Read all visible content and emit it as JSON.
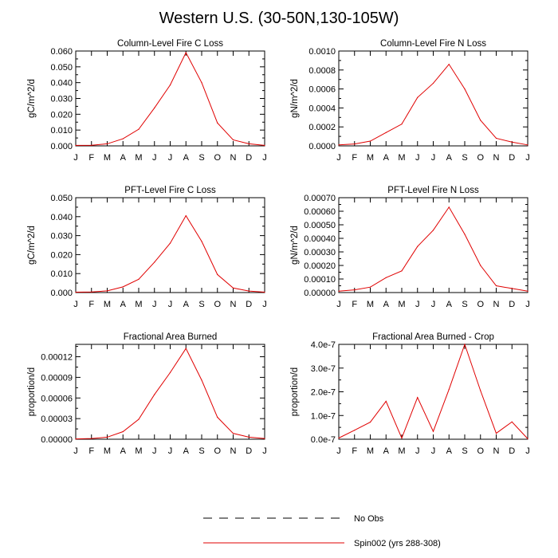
{
  "figure": {
    "title": "Western U.S. (30-50N,130-105W)",
    "series_color": "#e00000"
  },
  "legend": {
    "placement": "bottom-center",
    "entries": [
      {
        "label": "No Obs",
        "style": "dashed",
        "color": "#000000"
      },
      {
        "label": "Spin002 (yrs 288-308)",
        "style": "solid",
        "color": "#e00000"
      }
    ]
  },
  "chart_data": [
    {
      "type": "line",
      "title": "Column-Level Fire C Loss",
      "ylabel": "gC/m^2/d",
      "xlabel": "",
      "categories": [
        "J",
        "F",
        "M",
        "A",
        "M",
        "J",
        "J",
        "A",
        "S",
        "O",
        "N",
        "D",
        "J"
      ],
      "ylim": [
        0,
        0.06
      ],
      "yticks": [
        0,
        0.01,
        0.02,
        0.03,
        0.04,
        0.05,
        0.06
      ],
      "ytick_labels": [
        "0.000",
        "0.010",
        "0.020",
        "0.030",
        "0.040",
        "0.050",
        "0.060"
      ],
      "series": [
        {
          "name": "Spin002 (yrs 288-308)",
          "values": [
            0.0003,
            0.0004,
            0.0013,
            0.0045,
            0.0105,
            0.024,
            0.0385,
            0.059,
            0.04,
            0.0145,
            0.0038,
            0.0013,
            0.0003
          ]
        }
      ]
    },
    {
      "type": "line",
      "title": "Column-Level Fire N Loss",
      "ylabel": "gN/m^2/d",
      "xlabel": "",
      "categories": [
        "J",
        "F",
        "M",
        "A",
        "M",
        "J",
        "J",
        "A",
        "S",
        "O",
        "N",
        "D",
        "J"
      ],
      "ylim": [
        0,
        0.001
      ],
      "yticks": [
        0,
        0.0002,
        0.0004,
        0.0006,
        0.0008,
        0.001
      ],
      "ytick_labels": [
        "0.0000",
        "0.0002",
        "0.0004",
        "0.0006",
        "0.0008",
        "0.0010"
      ],
      "series": [
        {
          "name": "Spin002 (yrs 288-308)",
          "values": [
            1e-05,
            2e-05,
            5e-05,
            0.00014,
            0.00023,
            0.00051,
            0.00066,
            0.00086,
            0.0006,
            0.00027,
            8e-05,
            4e-05,
            1e-05
          ]
        }
      ]
    },
    {
      "type": "line",
      "title": "PFT-Level Fire C Loss",
      "ylabel": "gC/m^2/d",
      "xlabel": "",
      "categories": [
        "J",
        "F",
        "M",
        "A",
        "M",
        "J",
        "J",
        "A",
        "S",
        "O",
        "N",
        "D",
        "J"
      ],
      "ylim": [
        0,
        0.05
      ],
      "yticks": [
        0,
        0.01,
        0.02,
        0.03,
        0.04,
        0.05
      ],
      "ytick_labels": [
        "0.000",
        "0.010",
        "0.020",
        "0.030",
        "0.040",
        "0.050"
      ],
      "series": [
        {
          "name": "Spin002 (yrs 288-308)",
          "values": [
            0.0002,
            0.0003,
            0.0009,
            0.003,
            0.007,
            0.016,
            0.026,
            0.0405,
            0.027,
            0.0095,
            0.0024,
            0.0008,
            0.0002
          ]
        }
      ]
    },
    {
      "type": "line",
      "title": "PFT-Level Fire N Loss",
      "ylabel": "gN/m^2/d",
      "xlabel": "",
      "categories": [
        "J",
        "F",
        "M",
        "A",
        "M",
        "J",
        "J",
        "A",
        "S",
        "O",
        "N",
        "D",
        "J"
      ],
      "ylim": [
        0,
        0.0007
      ],
      "yticks": [
        0,
        0.0001,
        0.0002,
        0.0003,
        0.0004,
        0.0005,
        0.0006,
        0.0007
      ],
      "ytick_labels": [
        "0.00000",
        "0.00010",
        "0.00020",
        "0.00030",
        "0.00040",
        "0.00050",
        "0.00060",
        "0.00070"
      ],
      "series": [
        {
          "name": "Spin002 (yrs 288-308)",
          "values": [
            1e-05,
            2e-05,
            4e-05,
            0.00011,
            0.00016,
            0.00034,
            0.00046,
            0.00063,
            0.00043,
            0.0002,
            5e-05,
            3e-05,
            1e-05
          ]
        }
      ]
    },
    {
      "type": "line",
      "title": "Fractional Area Burned",
      "ylabel": "proportion/d",
      "xlabel": "",
      "categories": [
        "J",
        "F",
        "M",
        "A",
        "M",
        "J",
        "J",
        "A",
        "S",
        "O",
        "N",
        "D",
        "J"
      ],
      "ylim": [
        0,
        0.000138
      ],
      "yticks": [
        0,
        3e-05,
        6e-05,
        9e-05,
        0.00012
      ],
      "ytick_labels": [
        "0.00000",
        "0.00003",
        "0.00006",
        "0.00009",
        "0.00012"
      ],
      "series": [
        {
          "name": "Spin002 (yrs 288-308)",
          "values": [
            5e-07,
            1e-06,
            3e-06,
            1.1e-05,
            2.9e-05,
            6.5e-05,
            9.7e-05,
            0.000132,
            8.6e-05,
            3.2e-05,
            8.5e-06,
            3e-06,
            1e-06
          ]
        }
      ]
    },
    {
      "type": "line",
      "title": "Fractional Area Burned - Crop",
      "ylabel": "proportion/d",
      "xlabel": "",
      "categories": [
        "J",
        "F",
        "M",
        "A",
        "M",
        "J",
        "J",
        "A",
        "S",
        "O",
        "N",
        "D",
        "J"
      ],
      "ylim": [
        0,
        4e-07
      ],
      "yticks": [
        0,
        1e-07,
        2e-07,
        3e-07,
        4e-07
      ],
      "ytick_labels": [
        "0.0e-7",
        "1.0e-7",
        "2.0e-7",
        "3.0e-7",
        "4.0e-7"
      ],
      "series": [
        {
          "name": "Spin002 (yrs 288-308)",
          "values": [
            5e-09,
            3.8e-08,
            7.2e-08,
            1.6e-07,
            5e-09,
            1.76e-07,
            3.3e-08,
            2.1e-07,
            4e-07,
            2.05e-07,
            2.5e-08,
            7.3e-08,
            2e-09
          ]
        }
      ]
    }
  ]
}
